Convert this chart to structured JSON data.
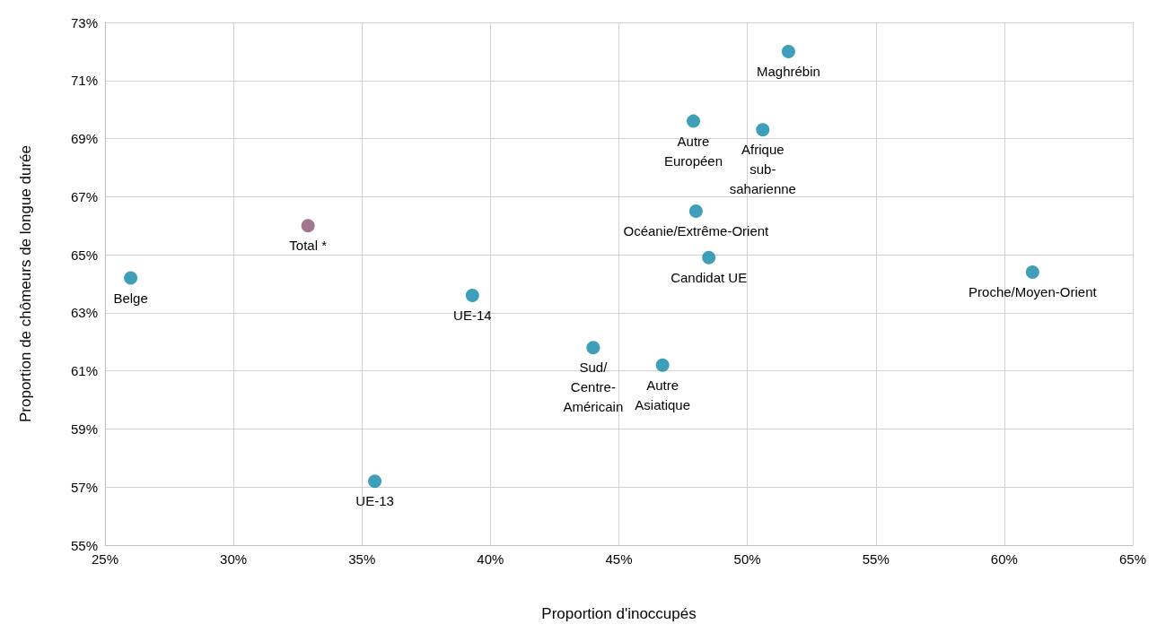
{
  "chart_data": {
    "type": "scatter",
    "xlabel": "Proportion d'inoccupés",
    "ylabel": "Proportion de chômeurs de longue durée",
    "x": [
      26.0,
      32.9,
      39.3,
      35.5,
      44.0,
      46.7,
      48.5,
      48.0,
      47.9,
      50.6,
      51.6,
      61.1
    ],
    "values": [
      64.2,
      66.0,
      63.6,
      57.2,
      61.8,
      61.2,
      64.9,
      66.5,
      69.6,
      69.3,
      72.0,
      64.4
    ],
    "colors": [
      "#0f87a6",
      "#8a5574",
      "#0f87a6",
      "#0f87a6",
      "#0f87a6",
      "#0f87a6",
      "#0f87a6",
      "#0f87a6",
      "#0f87a6",
      "#0f87a6",
      "#0f87a6",
      "#0f87a6"
    ],
    "annotations": [
      {
        "text": "Belge",
        "x": 26.0,
        "y": 64.2
      },
      {
        "text": "Total *",
        "x": 32.9,
        "y": 66.0
      },
      {
        "text": "UE-14",
        "x": 39.3,
        "y": 63.6
      },
      {
        "text": "UE-13",
        "x": 35.5,
        "y": 57.2
      },
      {
        "text": "Sud/\nCentre-\nAméricain",
        "x": 44.0,
        "y": 61.8
      },
      {
        "text": "Autre\nAsiatique",
        "x": 46.7,
        "y": 61.2
      },
      {
        "text": "Candidat UE",
        "x": 48.5,
        "y": 64.9
      },
      {
        "text": "Océanie/Extrême-Orient",
        "x": 48.0,
        "y": 66.5
      },
      {
        "text": "Autre\nEuropéen",
        "x": 47.9,
        "y": 69.6
      },
      {
        "text": "Afrique\nsub-\nsaharienne",
        "x": 50.6,
        "y": 69.3
      },
      {
        "text": "Maghrébin",
        "x": 51.6,
        "y": 72.0
      },
      {
        "text": "Proche/Moyen-Orient",
        "x": 61.1,
        "y": 64.4
      }
    ],
    "xlim": [
      25,
      65
    ],
    "xticks": [
      {
        "value": 25,
        "label": "25%"
      },
      {
        "value": 30,
        "label": "30%"
      },
      {
        "value": 35,
        "label": "35%"
      },
      {
        "value": 40,
        "label": "40%"
      },
      {
        "value": 45,
        "label": "45%"
      },
      {
        "value": 50,
        "label": "50%"
      },
      {
        "value": 55,
        "label": "55%"
      },
      {
        "value": 60,
        "label": "60%"
      },
      {
        "value": 65,
        "label": "65%"
      }
    ],
    "ylim": [
      55,
      73
    ],
    "yticks": [
      {
        "value": 55,
        "label": "55%"
      },
      {
        "value": 57,
        "label": "57%"
      },
      {
        "value": 59,
        "label": "59%"
      },
      {
        "value": 61,
        "label": "61%"
      },
      {
        "value": 63,
        "label": "63%"
      },
      {
        "value": 65,
        "label": "65%"
      },
      {
        "value": 67,
        "label": "67%"
      },
      {
        "value": 69,
        "label": "69%"
      },
      {
        "value": 71,
        "label": "71%"
      },
      {
        "value": 73,
        "label": "73%"
      }
    ],
    "grid": true,
    "marker": "circle"
  }
}
